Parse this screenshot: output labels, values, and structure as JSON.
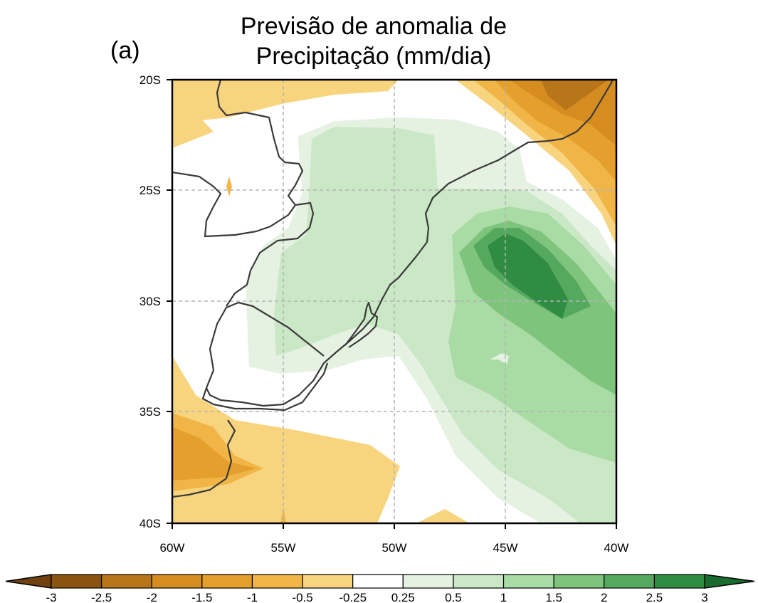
{
  "panel_label": "(a)",
  "title": {
    "line1": "Previsão de anomalia de",
    "line2": "Precipitação (mm/dia)"
  },
  "map": {
    "lat_ticks": [
      {
        "value": -20,
        "label": "20S"
      },
      {
        "value": -25,
        "label": "25S"
      },
      {
        "value": -30,
        "label": "30S"
      },
      {
        "value": -35,
        "label": "35S"
      },
      {
        "value": -40,
        "label": "40S"
      }
    ],
    "lon_ticks": [
      {
        "value": -60,
        "label": "60W"
      },
      {
        "value": -55,
        "label": "55W"
      },
      {
        "value": -50,
        "label": "50W"
      },
      {
        "value": -45,
        "label": "45W"
      },
      {
        "value": -40,
        "label": "40W"
      }
    ],
    "lon_range": [
      -60,
      -40
    ],
    "lat_range": [
      -40,
      -20
    ],
    "gridlines": "dashed"
  },
  "colorbar": {
    "labels": [
      "-3",
      "-2.5",
      "-2",
      "-1.5",
      "-1",
      "-0.5",
      "-0.25",
      "0.25",
      "0.5",
      "1",
      "1.5",
      "2",
      "2.5",
      "3"
    ],
    "colors": [
      "#8a5312",
      "#b9751a",
      "#d58d22",
      "#e59f2c",
      "#f0b546",
      "#f7d47d",
      "#ffffff",
      "#e5f2e2",
      "#cbe8c6",
      "#a9dba4",
      "#7fc47d",
      "#55a95e",
      "#2f8c42"
    ],
    "low_extend_color": "#704010",
    "high_extend_color": "#1a6b2f"
  },
  "colors": {
    "coast": "#3a3a3a",
    "grid": "#b3b3b3"
  }
}
